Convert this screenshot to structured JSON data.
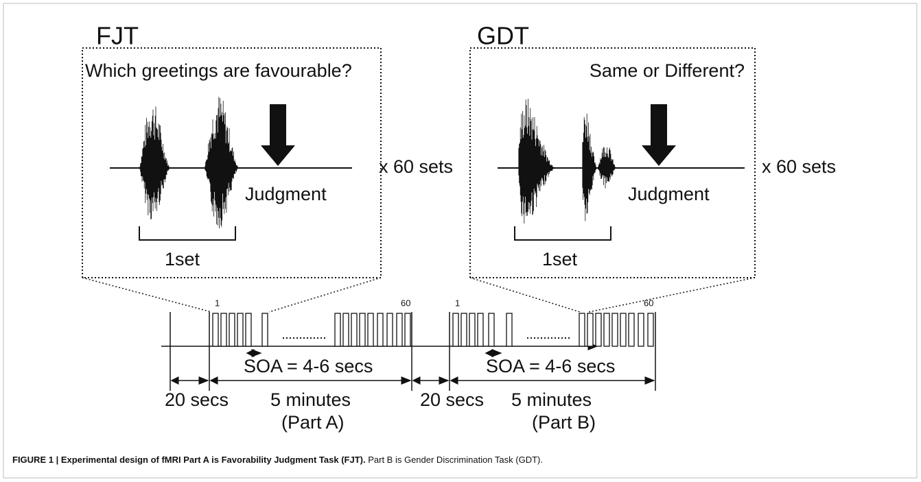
{
  "panels": [
    {
      "title": "FJT",
      "question": "Which greetings are favourable?",
      "response": "Judgment",
      "repeat": "x 60 sets",
      "set_label": "1set",
      "first": "1",
      "last": "60",
      "soa": "SOA = 4-6 secs",
      "rest": "20 secs",
      "duration": "5 minutes",
      "part": "(Part A)"
    },
    {
      "title": "GDT",
      "question": "Same or Different?",
      "response": "Judgment",
      "repeat": "x 60 sets",
      "set_label": "1set",
      "first": "1",
      "last": "60",
      "soa": "SOA = 4-6 secs",
      "rest": "20 secs",
      "duration": "5 minutes",
      "part": "(Part B)"
    }
  ],
  "caption": {
    "label": "FIGURE 1 | Experimental design of fMRI Part A is Favorability Judgment Task (FJT).",
    "text": "Part B is Gender Discrimination Task (GDT)."
  }
}
